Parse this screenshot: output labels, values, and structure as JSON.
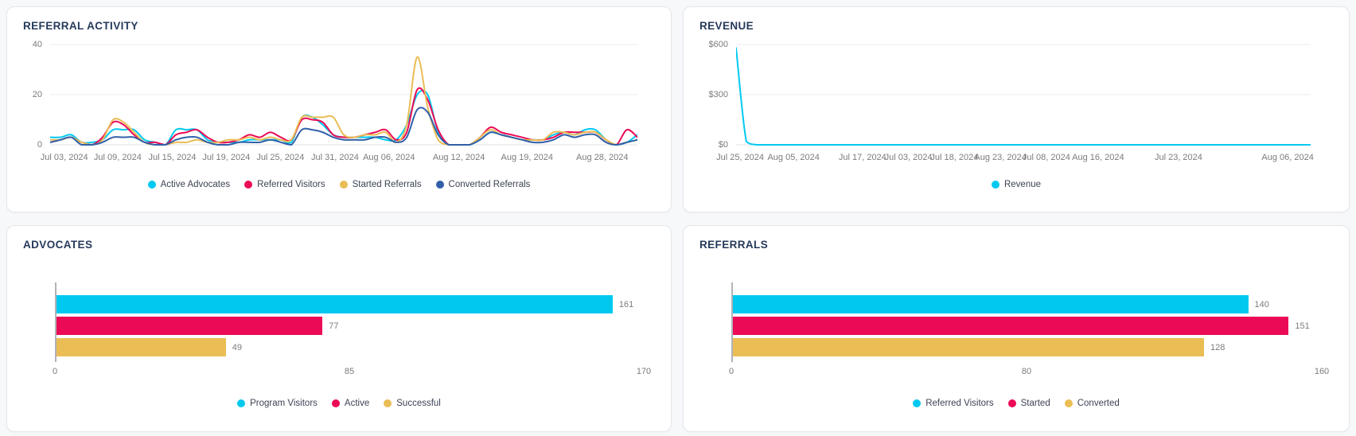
{
  "page": {
    "background": "#f7f8fa",
    "card_background": "#ffffff",
    "title_color": "#263a5c",
    "axis_text_color": "#7b7b7b",
    "legend_text_color": "#3d4355",
    "grid_color": "#ededf0",
    "baseline_color": "#e2e2e6",
    "bar_axis_color": "#b0b3b8"
  },
  "chart_data": [
    {
      "key": "referral-activity",
      "type": "line",
      "title": "REFERRAL ACTIVITY",
      "ylim": [
        0,
        40
      ],
      "grid": true,
      "legend_position": "bottom",
      "yticks": [
        {
          "value": 0,
          "label": "0"
        },
        {
          "value": 20,
          "label": "20"
        },
        {
          "value": 40,
          "label": "40"
        }
      ],
      "xlabels": [
        {
          "label": "Jul 03, 2024",
          "pos": 2.4
        },
        {
          "label": "Jul 09, 2024",
          "pos": 11.5
        },
        {
          "label": "Jul 15, 2024",
          "pos": 20.8
        },
        {
          "label": "Jul 19, 2024",
          "pos": 30.0
        },
        {
          "label": "Jul 25, 2024",
          "pos": 39.2
        },
        {
          "label": "Jul 31, 2024",
          "pos": 48.5
        },
        {
          "label": "Aug 06, 2024",
          "pos": 57.7
        },
        {
          "label": "Aug 12, 2024",
          "pos": 69.6
        },
        {
          "label": "Aug 19, 2024",
          "pos": 81.2
        },
        {
          "label": "Aug 28, 2024",
          "pos": 94.0
        }
      ],
      "series": [
        {
          "name": "Active Advocates",
          "color": "#00C9F0",
          "values": [
            3,
            3,
            4,
            1,
            1,
            2,
            6,
            6,
            6,
            2,
            1,
            0,
            6,
            6,
            6,
            2,
            1,
            1,
            1,
            2,
            2,
            2,
            2,
            1,
            11,
            11,
            8,
            4,
            3,
            3,
            3,
            3,
            2,
            2,
            8,
            20,
            20,
            5,
            0,
            0,
            0,
            2,
            5,
            4,
            3,
            2,
            2,
            2,
            4,
            5,
            4,
            6,
            6,
            2,
            0,
            1,
            4
          ]
        },
        {
          "name": "Referred Visitors",
          "color": "#EB0A55",
          "values": [
            1,
            2,
            3,
            1,
            0,
            3,
            9,
            8,
            4,
            1,
            1,
            0,
            4,
            5,
            6,
            3,
            1,
            1,
            2,
            4,
            3,
            5,
            3,
            2,
            10,
            10,
            9,
            4,
            3,
            3,
            4,
            5,
            6,
            2,
            5,
            22,
            18,
            6,
            0,
            0,
            0,
            3,
            7,
            5,
            4,
            3,
            2,
            2,
            3,
            5,
            5,
            5,
            5,
            2,
            0,
            6,
            3
          ]
        },
        {
          "name": "Started Referrals",
          "color": "#EABD55",
          "values": [
            2,
            2,
            3,
            1,
            0,
            2,
            10,
            9,
            5,
            1,
            0,
            0,
            1,
            1,
            2,
            1,
            1,
            2,
            2,
            3,
            2,
            3,
            2,
            2,
            11,
            11,
            11,
            11,
            4,
            3,
            4,
            4,
            5,
            1,
            8,
            35,
            15,
            2,
            0,
            0,
            0,
            3,
            6,
            4,
            3,
            2,
            2,
            2,
            5,
            5,
            4,
            5,
            5,
            2,
            0,
            1,
            2
          ]
        },
        {
          "name": "Converted Referrals",
          "color": "#3160A9",
          "values": [
            1,
            2,
            3,
            0,
            0,
            1,
            3,
            3,
            3,
            1,
            0,
            0,
            2,
            3,
            3,
            1,
            0,
            0,
            1,
            1,
            1,
            2,
            1,
            0,
            6,
            6,
            5,
            3,
            2,
            2,
            2,
            3,
            3,
            1,
            3,
            14,
            13,
            4,
            0,
            0,
            0,
            2,
            5,
            4,
            3,
            2,
            1,
            1,
            2,
            4,
            3,
            4,
            4,
            1,
            0,
            1,
            2
          ]
        }
      ]
    },
    {
      "key": "revenue",
      "type": "line",
      "title": "REVENUE",
      "ylim": [
        0,
        600
      ],
      "grid": true,
      "legend_position": "bottom",
      "yticks": [
        {
          "value": 0,
          "label": "$0"
        },
        {
          "value": 300,
          "label": "$300"
        },
        {
          "value": 600,
          "label": "$600"
        }
      ],
      "xlabels": [
        {
          "label": "Jul 25, 2024",
          "pos": 0.7
        },
        {
          "label": "Aug 05, 2024",
          "pos": 10.0
        },
        {
          "label": "Jul 17, 2024",
          "pos": 22.0
        },
        {
          "label": "Jul 03, 2024",
          "pos": 30.0
        },
        {
          "label": "Jul 18, 2024",
          "pos": 38.0
        },
        {
          "label": "Aug 23, 2024",
          "pos": 46.0
        },
        {
          "label": "Jul 08, 2024",
          "pos": 54.0
        },
        {
          "label": "Aug 16, 2024",
          "pos": 63.0
        },
        {
          "label": "Jul 23, 2024",
          "pos": 77.0
        },
        {
          "label": "Aug 06, 2024",
          "pos": 96.0
        }
      ],
      "series": [
        {
          "name": "Revenue",
          "color": "#00C9F0",
          "values": [
            580,
            20,
            0,
            0,
            0,
            0,
            0,
            0,
            0,
            0,
            0,
            0,
            0,
            0,
            0,
            0,
            0,
            0,
            0,
            0,
            0,
            0,
            0,
            0,
            0,
            0,
            0,
            0,
            0,
            0,
            0,
            0,
            0,
            0,
            0,
            0,
            0,
            0,
            0,
            0,
            0,
            0,
            0,
            0,
            0,
            0,
            0,
            0,
            0,
            0,
            0,
            0,
            0,
            0,
            0,
            0,
            0
          ]
        }
      ]
    },
    {
      "key": "advocates",
      "type": "bar",
      "title": "ADVOCATES",
      "orientation": "horizontal",
      "xlim": [
        0,
        170
      ],
      "xticks": [
        {
          "value": 0,
          "label": "0"
        },
        {
          "value": 85,
          "label": "85"
        },
        {
          "value": 170,
          "label": "170"
        }
      ],
      "items": [
        {
          "label": "Program Visitors",
          "value": 161,
          "value_label": "161",
          "color": "#00C9F0"
        },
        {
          "label": "Active",
          "value": 77,
          "value_label": "77",
          "color": "#EB0A55"
        },
        {
          "label": "Successful",
          "value": 49,
          "value_label": "49",
          "color": "#EABD55"
        }
      ]
    },
    {
      "key": "referrals",
      "type": "bar",
      "title": "REFERRALS",
      "orientation": "horizontal",
      "xlim": [
        0,
        160
      ],
      "xticks": [
        {
          "value": 0,
          "label": "0"
        },
        {
          "value": 80,
          "label": "80"
        },
        {
          "value": 160,
          "label": "160"
        }
      ],
      "items": [
        {
          "label": "Referred Visitors",
          "value": 140,
          "value_label": "140",
          "color": "#00C9F0"
        },
        {
          "label": "Started",
          "value": 151,
          "value_label": "151",
          "color": "#EB0A55"
        },
        {
          "label": "Converted",
          "value": 128,
          "value_label": "128",
          "color": "#EABD55"
        }
      ]
    }
  ]
}
